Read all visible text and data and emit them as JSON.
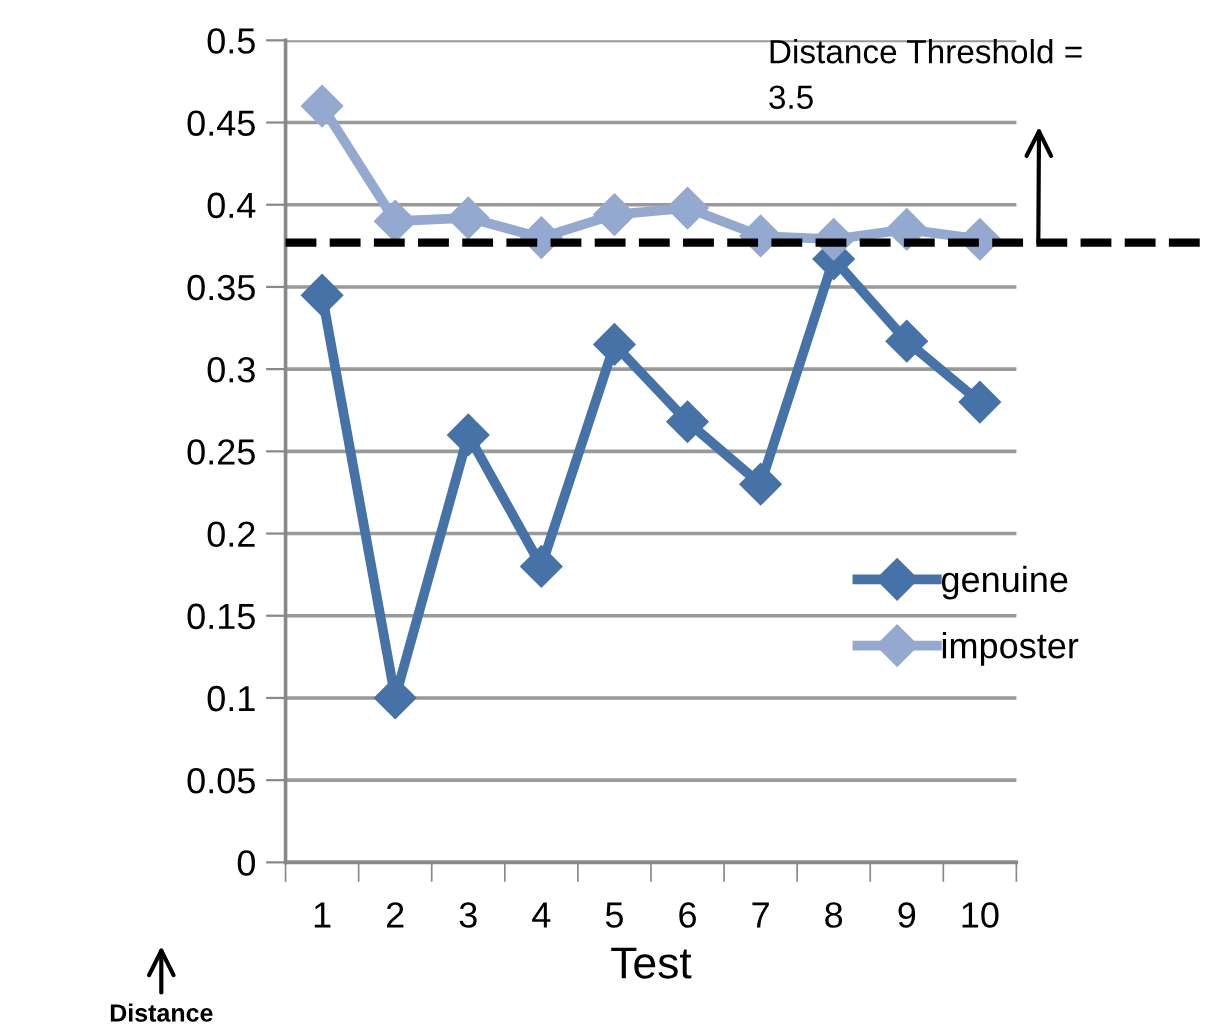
{
  "chart_data": {
    "type": "line",
    "xlabel": "Test",
    "ylabel": "Distance",
    "categories": [
      "1",
      "2",
      "3",
      "4",
      "5",
      "6",
      "7",
      "8",
      "9",
      "10"
    ],
    "series": [
      {
        "name": "genuine",
        "color": "#4572a7",
        "values": [
          0.345,
          0.1,
          0.26,
          0.18,
          0.315,
          0.268,
          0.23,
          0.367,
          0.317,
          0.28
        ]
      },
      {
        "name": "imposter",
        "color": "#93a9cf",
        "values": [
          0.46,
          0.39,
          0.392,
          0.38,
          0.394,
          0.398,
          0.381,
          0.379,
          0.385,
          0.379
        ]
      }
    ],
    "ylim": [
      0,
      0.5
    ],
    "yticks": [
      0,
      0.05,
      0.1,
      0.15,
      0.2,
      0.25,
      0.3,
      0.35,
      0.4,
      0.45,
      0.5
    ],
    "ref_lines": [
      {
        "axis": "y",
        "value": 0.377,
        "color": "#000000",
        "line_style": "dashed"
      }
    ],
    "annotations": [
      "Distance Threshold =\n3.5"
    ],
    "grid": "y",
    "legend": "right",
    "marker": "diamond",
    "line_style": "solid"
  }
}
